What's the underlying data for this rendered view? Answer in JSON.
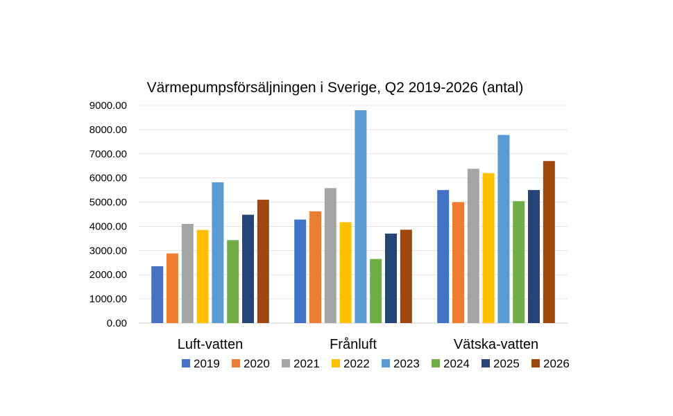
{
  "chart_data": {
    "type": "bar",
    "title": "Värmepumpsförsäljningen i Sverige, Q2 2019-2026 (antal)",
    "xlabel": "",
    "ylabel": "",
    "categories": [
      "Luft-vatten",
      "Frånluft",
      "Vätska-vatten"
    ],
    "ylim": [
      0,
      9000
    ],
    "yticks": [
      0,
      1000,
      2000,
      3000,
      4000,
      5000,
      6000,
      7000,
      8000,
      9000
    ],
    "ytick_labels": [
      "0.00",
      "1000.00",
      "2000.00",
      "3000.00",
      "4000.00",
      "5000.00",
      "6000.00",
      "7000.00",
      "8000.00",
      "9000.00"
    ],
    "grid": true,
    "legend_position": "bottom",
    "series": [
      {
        "name": "2019",
        "color": "#4472C4",
        "values": [
          2350,
          4280,
          5500
        ]
      },
      {
        "name": "2020",
        "color": "#ED7D31",
        "values": [
          2880,
          4620,
          5000
        ]
      },
      {
        "name": "2021",
        "color": "#A5A5A5",
        "values": [
          4100,
          5580,
          6380
        ]
      },
      {
        "name": "2022",
        "color": "#FFC000",
        "values": [
          3850,
          4170,
          6200
        ]
      },
      {
        "name": "2023",
        "color": "#5B9BD5",
        "values": [
          5820,
          8800,
          7780
        ]
      },
      {
        "name": "2024",
        "color": "#70AD47",
        "values": [
          3430,
          2650,
          5040
        ]
      },
      {
        "name": "2025",
        "color": "#264478",
        "values": [
          4480,
          3700,
          5500
        ]
      },
      {
        "name": "2026",
        "color": "#9E480E",
        "values": [
          5100,
          3860,
          6700
        ]
      }
    ]
  }
}
